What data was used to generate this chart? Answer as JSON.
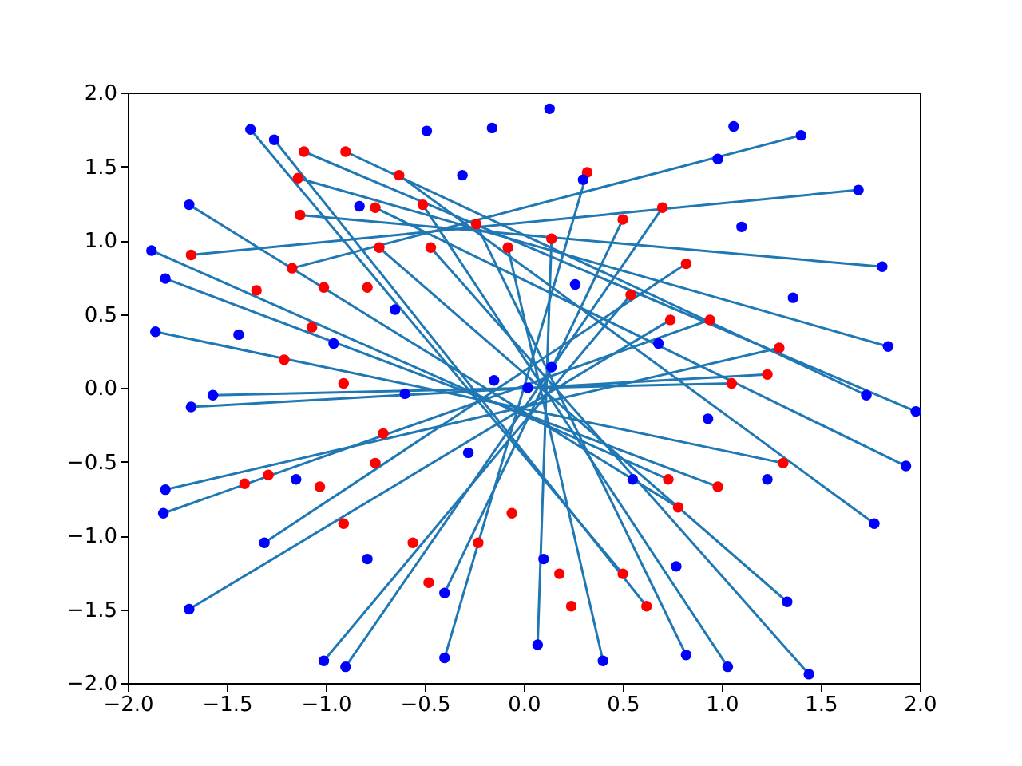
{
  "chart_data": {
    "type": "scatter",
    "xlim": [
      -2,
      2
    ],
    "ylim": [
      -2,
      2
    ],
    "xticks": [
      {
        "value": -2,
        "label": "−2.0"
      },
      {
        "value": -1.5,
        "label": "−1.5"
      },
      {
        "value": -1,
        "label": "−1.0"
      },
      {
        "value": -0.5,
        "label": "−0.5"
      },
      {
        "value": 0,
        "label": "0.0"
      },
      {
        "value": 0.5,
        "label": "0.5"
      },
      {
        "value": 1,
        "label": "1.0"
      },
      {
        "value": 1.5,
        "label": "1.5"
      },
      {
        "value": 2,
        "label": "2.0"
      }
    ],
    "yticks": [
      {
        "value": -2,
        "label": "−2.0"
      },
      {
        "value": -1.5,
        "label": "−1.5"
      },
      {
        "value": -1,
        "label": "−1.0"
      },
      {
        "value": -0.5,
        "label": "−0.5"
      },
      {
        "value": 0,
        "label": "0.0"
      },
      {
        "value": 0.5,
        "label": "0.5"
      },
      {
        "value": 1,
        "label": "1.0"
      },
      {
        "value": 1.5,
        "label": "1.5"
      },
      {
        "value": 2,
        "label": "2.0"
      }
    ],
    "grid": false,
    "legend": false,
    "series": [
      {
        "type": "line",
        "color": "#1f77b4",
        "x": [
          -1.38,
          0.5,
          null,
          -1.26,
          0.62,
          null,
          -1.69,
          0.78,
          null,
          -1.88,
          0.73,
          null,
          -1.81,
          0.98,
          null,
          -1.86,
          1.31,
          null,
          -1.57,
          1.05,
          null,
          -1.68,
          1.23,
          null,
          -1.81,
          1.29,
          null,
          -1.82,
          0.94,
          null,
          -1.69,
          0.74,
          null,
          -1.31,
          0.82,
          null,
          -1.01,
          0.54,
          null,
          -0.9,
          0.7,
          null,
          -0.4,
          0.5,
          null,
          -0.4,
          0.32,
          null,
          0.07,
          0.14,
          null,
          0.4,
          -0.08,
          null,
          0.82,
          -0.24,
          null,
          1.03,
          -0.51,
          null,
          1.44,
          -0.47,
          null,
          1.33,
          -0.73,
          null,
          1.77,
          -0.63,
          null,
          1.93,
          -0.75,
          null,
          1.98,
          -1.11,
          null,
          1.73,
          -0.9,
          null,
          1.84,
          -1.14,
          null,
          1.81,
          -1.13,
          null,
          1.69,
          -1.68,
          null,
          1.4,
          -1.17
        ],
        "values": [
          1.75,
          -1.26,
          null,
          1.68,
          -1.48,
          null,
          1.24,
          -0.81,
          null,
          0.93,
          -0.62,
          null,
          0.74,
          -0.67,
          null,
          0.38,
          -0.51,
          null,
          -0.05,
          0.03,
          null,
          -0.13,
          0.09,
          null,
          -0.69,
          0.27,
          null,
          -0.85,
          0.46,
          null,
          -1.5,
          0.46,
          null,
          -1.05,
          0.84,
          null,
          -1.85,
          0.63,
          null,
          -1.89,
          1.22,
          null,
          -1.39,
          1.14,
          null,
          -1.83,
          1.46,
          null,
          -1.74,
          1.01,
          null,
          -1.85,
          0.95,
          null,
          -1.81,
          1.11,
          null,
          -1.89,
          1.24,
          null,
          -1.94,
          0.95,
          null,
          -1.45,
          0.95,
          null,
          -0.92,
          1.44,
          null,
          -0.53,
          1.22,
          null,
          -0.16,
          1.6,
          null,
          -0.05,
          1.6,
          null,
          0.28,
          1.42,
          null,
          0.82,
          1.17,
          null,
          1.34,
          0.9,
          null,
          1.71,
          0.81
        ]
      },
      {
        "marker": "circle",
        "color": "#ff0000",
        "x": [
          -1.11,
          -0.9,
          -1.14,
          -1.13,
          -1.68,
          -1.17,
          -1.01,
          -0.79,
          -1.35,
          -1.07,
          -1.21,
          -0.91,
          -0.71,
          -1.29,
          -1.41,
          -1.03,
          -0.75,
          -0.91,
          -0.56,
          -0.48,
          -0.23,
          -0.06,
          0.18,
          0.24,
          0.5,
          0.62,
          0.78,
          0.73,
          0.98,
          1.31,
          1.05,
          1.23,
          1.29,
          0.94,
          0.74,
          0.82,
          0.54,
          0.7,
          0.5,
          0.32,
          0.14,
          -0.08,
          -0.24,
          -0.51,
          -0.47,
          -0.73,
          -0.63,
          -0.75
        ],
        "values": [
          1.6,
          1.6,
          1.42,
          1.17,
          0.9,
          0.81,
          0.68,
          0.68,
          0.66,
          0.41,
          0.19,
          0.03,
          -0.31,
          -0.59,
          -0.65,
          -0.67,
          -0.51,
          -0.92,
          -1.05,
          -1.32,
          -1.05,
          -0.85,
          -1.26,
          -1.48,
          -1.26,
          -1.48,
          -0.81,
          -0.62,
          -0.67,
          -0.51,
          0.03,
          0.09,
          0.27,
          0.46,
          0.46,
          0.84,
          0.63,
          1.22,
          1.14,
          1.46,
          1.01,
          0.95,
          1.11,
          1.24,
          0.95,
          0.95,
          1.44,
          1.22
        ]
      },
      {
        "marker": "circle",
        "color": "#0000ff",
        "x": [
          -1.38,
          -1.26,
          -1.69,
          -1.88,
          -1.81,
          -1.86,
          -1.57,
          -1.68,
          -1.81,
          -1.82,
          -1.69,
          -1.31,
          -1.01,
          -0.9,
          -0.4,
          -0.4,
          0.07,
          0.4,
          0.82,
          1.03,
          1.44,
          1.33,
          1.77,
          1.93,
          1.98,
          1.73,
          1.84,
          1.81,
          1.69,
          1.4,
          1.06,
          0.98,
          0.3,
          0.13,
          -0.16,
          -0.49,
          -0.83,
          -0.31,
          1.1,
          1.36,
          0.93,
          1.23,
          0.77,
          0.14,
          -0.15,
          0.02,
          -0.28,
          -0.6,
          -0.96,
          -1.15,
          -0.65,
          0.26,
          0.68,
          0.55,
          0.1,
          -0.79,
          -1.44
        ],
        "values": [
          1.75,
          1.68,
          1.24,
          0.93,
          0.74,
          0.38,
          -0.05,
          -0.13,
          -0.69,
          -0.85,
          -1.5,
          -1.05,
          -1.85,
          -1.89,
          -1.39,
          -1.83,
          -1.74,
          -1.85,
          -1.81,
          -1.89,
          -1.94,
          -1.45,
          -0.92,
          -0.53,
          -0.16,
          -0.05,
          0.28,
          0.82,
          1.34,
          1.71,
          1.77,
          1.55,
          1.41,
          1.89,
          1.76,
          1.74,
          1.23,
          1.44,
          1.09,
          0.61,
          -0.21,
          -0.62,
          -1.21,
          0.14,
          0.05,
          0.0,
          -0.44,
          -0.04,
          0.3,
          -0.62,
          0.53,
          0.7,
          0.3,
          -0.62,
          -1.16,
          -1.16,
          0.36
        ]
      }
    ]
  }
}
